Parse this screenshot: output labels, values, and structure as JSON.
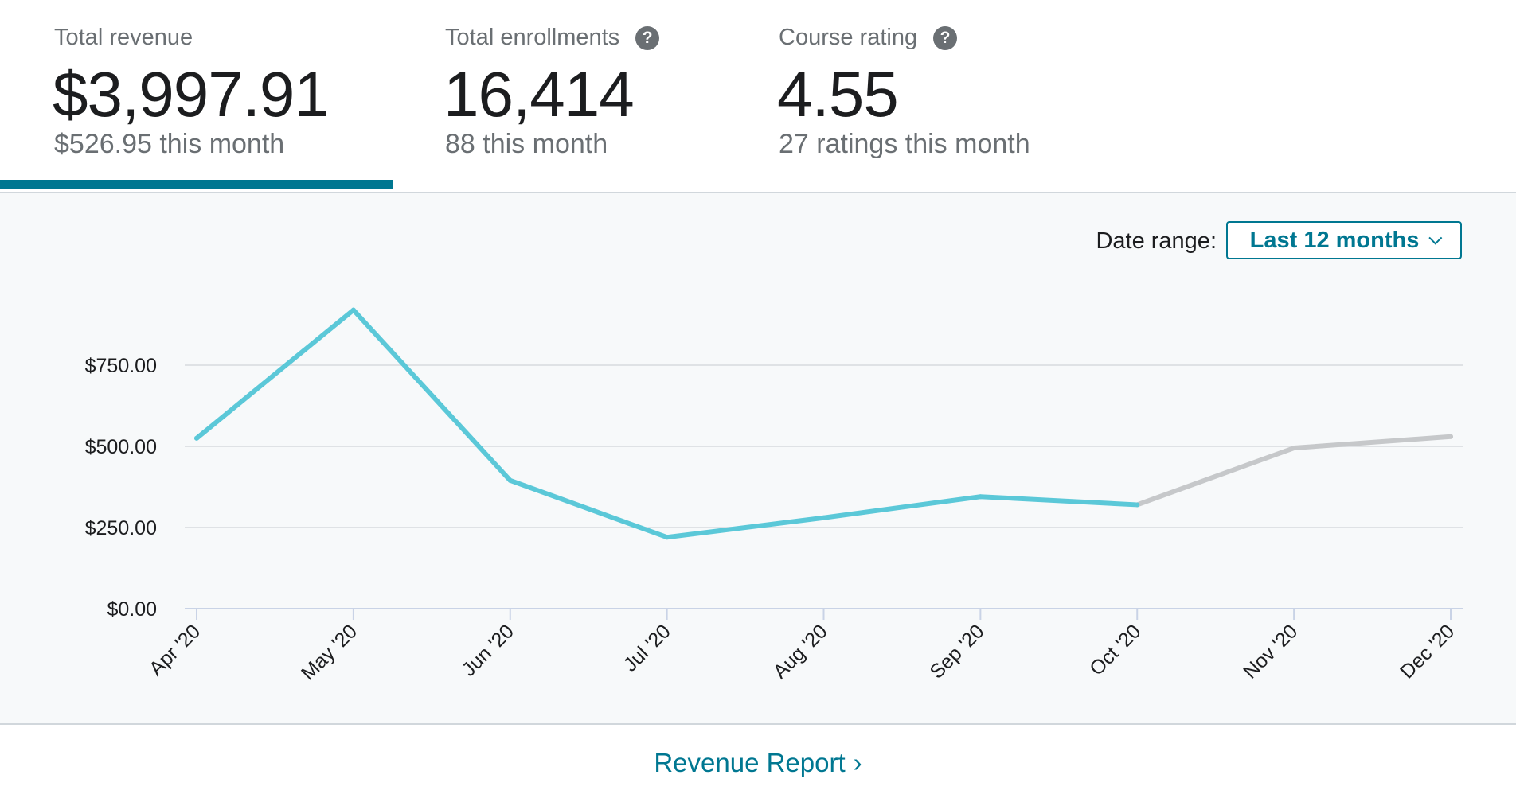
{
  "tabs": [
    {
      "label": "Total revenue",
      "value": "$3,997.91",
      "sub": "$526.95 this month",
      "help": false
    },
    {
      "label": "Total enrollments",
      "value": "16,414",
      "sub": "88 this month",
      "help": true
    },
    {
      "label": "Course rating",
      "value": "4.55",
      "sub": "27 ratings this month",
      "help": true
    }
  ],
  "help_glyph": "?",
  "date_range": {
    "label": "Date range:",
    "selected": "Last 12 months"
  },
  "report_link": {
    "label": "Revenue Report",
    "arrow": "›"
  },
  "colors": {
    "accent": "#007791",
    "series_final": "#5bc8d8",
    "series_pending": "#c6c8ca"
  },
  "chart_data": {
    "type": "line",
    "categories": [
      "Apr '20",
      "May '20",
      "Jun '20",
      "Jul '20",
      "Aug '20",
      "Sep '20",
      "Oct '20",
      "Nov '20",
      "Dec '20"
    ],
    "values": [
      525,
      920,
      395,
      220,
      280,
      345,
      320,
      495,
      530
    ],
    "pending_from_index": 6,
    "yticks": [
      0,
      250,
      500,
      750
    ],
    "ytick_labels": [
      "$0.00",
      "$250.00",
      "$500.00",
      "$750.00"
    ],
    "ylim": [
      0,
      1000
    ],
    "grid": true
  }
}
